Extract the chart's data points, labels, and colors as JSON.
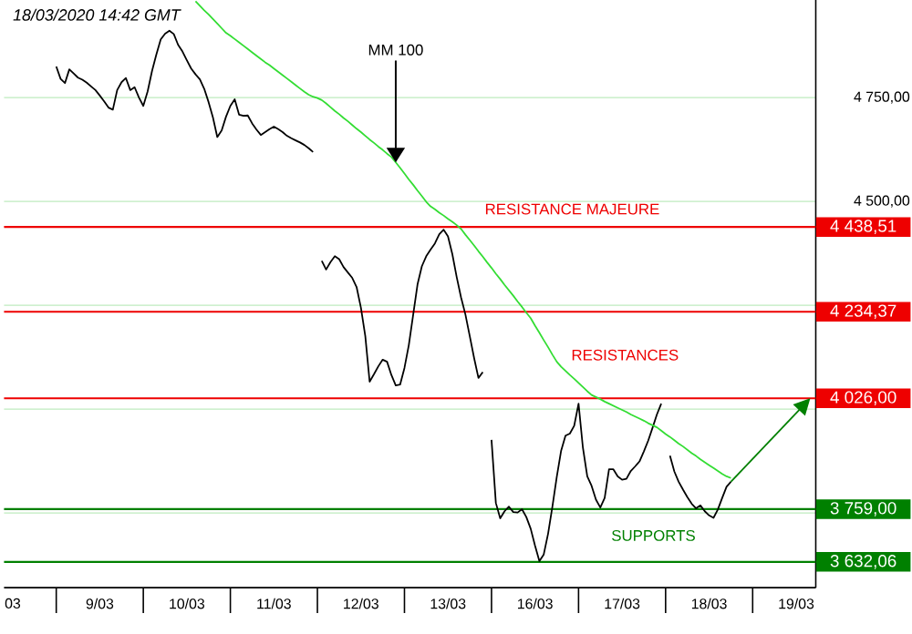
{
  "chart_data": {
    "type": "line",
    "title": "18/03/2020  14:42 GMT",
    "categories": [
      "03",
      null,
      null,
      null,
      null,
      null,
      null,
      null,
      null,
      null,
      null,
      null,
      null,
      null,
      null,
      null,
      null,
      null,
      null,
      null,
      "9/03",
      null,
      null,
      null,
      null,
      null,
      null,
      null,
      null,
      null,
      null,
      null,
      null,
      null,
      null,
      null,
      null,
      null,
      null,
      null,
      "10/03",
      null,
      null,
      null,
      null,
      null,
      null,
      null,
      null,
      null,
      null,
      null,
      null,
      null,
      null,
      null,
      null,
      null,
      null,
      null,
      "11/03",
      null,
      null,
      null,
      null,
      null,
      null,
      null,
      null,
      null,
      null,
      null,
      null,
      null,
      null,
      null,
      null,
      null,
      null,
      null,
      "12/03",
      null,
      null,
      null,
      null,
      null,
      null,
      null,
      null,
      null,
      null,
      null,
      null,
      null,
      null,
      null,
      null,
      null,
      null,
      null,
      "13/03",
      null,
      null,
      null,
      null,
      null,
      null,
      null,
      null,
      null,
      null,
      null,
      null,
      null,
      null,
      null,
      null,
      null,
      null,
      null,
      "16/03",
      null,
      null,
      null,
      null,
      null,
      null,
      null,
      null,
      null,
      null,
      null,
      null,
      null,
      null,
      null,
      null,
      null,
      null,
      null,
      "17/03",
      null,
      null,
      null,
      null,
      null,
      null,
      null,
      null,
      null,
      null,
      null,
      null,
      null,
      null,
      null,
      null,
      null,
      null,
      null,
      "18/03",
      null,
      null,
      null,
      null,
      null,
      null,
      null,
      null,
      null,
      null,
      null,
      null,
      null,
      null,
      null,
      null,
      null,
      null,
      null,
      "19/03",
      null,
      null,
      null,
      null
    ],
    "ylim": [
      3570,
      4985
    ],
    "yticks": [
      {
        "value": 4750,
        "label": "4 750,00"
      },
      {
        "value": 4500,
        "label": "4 500,00"
      },
      {
        "value": 4250,
        "label": null
      },
      {
        "value": 4000,
        "label": null
      },
      {
        "value": 3750,
        "label": null
      }
    ],
    "grid": "y",
    "marker": "none",
    "series": [
      {
        "color": "#000000",
        "values": [
          null,
          null,
          null,
          null,
          null,
          null,
          null,
          null,
          null,
          null,
          4825,
          4795,
          4785,
          4818,
          4808,
          4798,
          4793,
          4786,
          4777,
          4768,
          4755,
          4741,
          4726,
          4721,
          4768,
          4787,
          4797,
          4768,
          4775,
          4750,
          4730,
          4765,
          4814,
          4854,
          4890,
          4904,
          4911,
          4903,
          4877,
          4861,
          4840,
          4820,
          4806,
          4794,
          4771,
          4739,
          4702,
          4655,
          4671,
          4704,
          4730,
          4746,
          4709,
          4706,
          4707,
          4688,
          4673,
          4660,
          4667,
          4674,
          4680,
          4674,
          4667,
          4658,
          4652,
          4647,
          4642,
          4636,
          4628,
          4619,
          null,
          4357,
          4336,
          4354,
          4368,
          4361,
          4342,
          4329,
          4316,
          4294,
          4244,
          4176,
          4066,
          4084,
          4103,
          4119,
          4114,
          4082,
          4057,
          4059,
          4099,
          4154,
          4227,
          4300,
          4344,
          4368,
          4384,
          4399,
          4421,
          4432,
          4416,
          4373,
          4318,
          4269,
          4228,
          4176,
          4123,
          4075,
          4089,
          null,
          3926,
          3774,
          3737,
          3754,
          3765,
          3752,
          3751,
          3759,
          3740,
          3712,
          3671,
          3634,
          3650,
          3700,
          3766,
          3837,
          3900,
          3936,
          3941,
          3960,
          4013,
          3907,
          3838,
          3815,
          3782,
          3763,
          3786,
          3855,
          3855,
          3838,
          3830,
          3832,
          3851,
          3862,
          3874,
          3898,
          3924,
          3955,
          3987,
          4013,
          null,
          3888,
          3850,
          3825,
          3806,
          3788,
          3772,
          3761,
          3768,
          3754,
          3744,
          3738,
          3758,
          3786,
          3813,
          3825,
          null,
          null,
          null,
          null,
          null,
          null,
          null,
          null,
          null,
          null,
          null,
          null,
          null,
          null,
          null,
          null,
          null,
          null,
          null
        ]
      },
      {
        "color": "#33dd33",
        "values": [
          null,
          null,
          null,
          null,
          null,
          null,
          null,
          null,
          null,
          null,
          null,
          null,
          null,
          null,
          null,
          null,
          null,
          null,
          null,
          null,
          null,
          null,
          null,
          null,
          null,
          null,
          null,
          null,
          null,
          null,
          null,
          null,
          null,
          null,
          null,
          null,
          null,
          null,
          null,
          null,
          null,
          null,
          4982,
          4971,
          4960,
          4950,
          4939,
          4928,
          4917,
          4906,
          4899,
          4891,
          4883,
          4875,
          4867,
          4859,
          4851,
          4843,
          4835,
          4828,
          4820,
          4812,
          4804,
          4796,
          4788,
          4780,
          4772,
          4764,
          4757,
          4752,
          4749,
          4744,
          4736,
          4727,
          4718,
          4710,
          4701,
          4693,
          4684,
          4675,
          4667,
          4658,
          4649,
          4641,
          4632,
          4624,
          4615,
          4607,
          4594,
          4581,
          4567,
          4553,
          4540,
          4526,
          4513,
          4499,
          4488,
          4481,
          4473,
          4466,
          4458,
          4451,
          4443,
          4434,
          4420,
          4407,
          4394,
          4380,
          4367,
          4353,
          4340,
          4326,
          4313,
          4299,
          4286,
          4273,
          4259,
          4246,
          4232,
          4219,
          4201,
          4184,
          4166,
          4149,
          4131,
          4114,
          4102,
          4092,
          4082,
          4073,
          4063,
          4053,
          4043,
          4034,
          4029,
          4024,
          4018,
          4013,
          4008,
          4003,
          3998,
          3993,
          3987,
          3982,
          3977,
          3972,
          3966,
          3961,
          3956,
          3948,
          3940,
          3933,
          3925,
          3917,
          3910,
          3902,
          3894,
          3887,
          3879,
          3872,
          3865,
          3858,
          3851,
          3844,
          3838,
          3834,
          null,
          null,
          null,
          null,
          null,
          null,
          null,
          null,
          null,
          null,
          null,
          null,
          null,
          null,
          null,
          null,
          null,
          null,
          null
        ]
      }
    ],
    "ref_lines": [
      {
        "axis": "y",
        "value": 4438.51,
        "label": "4 438,51",
        "color": "#ee0000"
      },
      {
        "axis": "y",
        "value": 4234.37,
        "label": "4 234,37",
        "color": "#ee0000"
      },
      {
        "axis": "y",
        "value": 4026.0,
        "label": "4 026,00",
        "color": "#ee0000"
      },
      {
        "axis": "y",
        "value": 3759.0,
        "label": "3 759,00",
        "color": "#008000"
      },
      {
        "axis": "y",
        "value": 3632.06,
        "label": "3 632,06",
        "color": "#008000"
      }
    ],
    "annotations": [
      {
        "text": "MM 100",
        "y": 4594
      },
      "RESISTANCE MAJEURE",
      "RESISTANCES",
      "SUPPORTS"
    ]
  }
}
